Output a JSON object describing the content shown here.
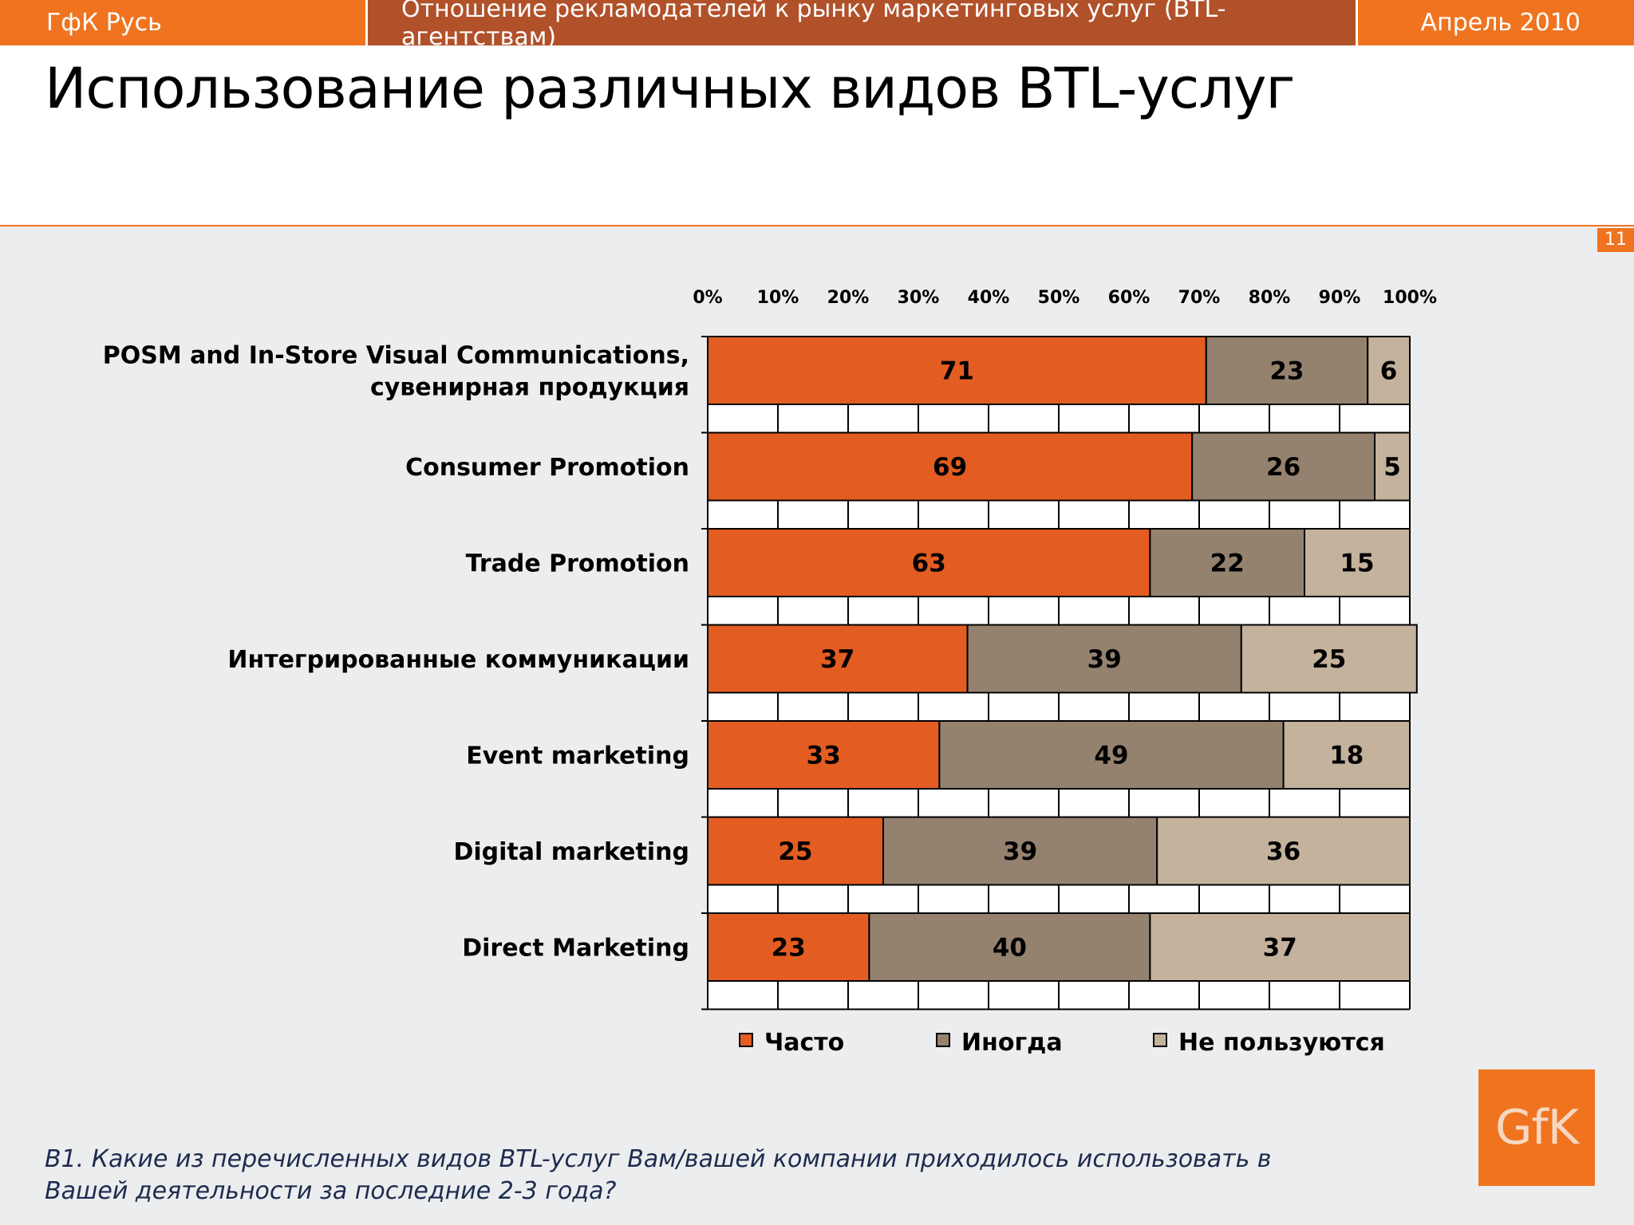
{
  "header": {
    "company": "ГфК Русь",
    "report_title": "Отношение рекламодателей к рынку маркетинговых услуг (BTL-агентствам)",
    "date": "Апрель 2010"
  },
  "slide": {
    "title": "Использование различных видов BTL-услуг",
    "page_number": "11",
    "question": "B1. Какие из перечисленных видов BTL-услуг Вам/вашей компании приходилось использовать в Вашей деятельности за последние 2-3 года?"
  },
  "logo": {
    "text": "GfK"
  },
  "chart_data": {
    "type": "bar",
    "orientation": "horizontal",
    "stacked": true,
    "categories": [
      [
        "POSM and In-Store Visual Communications,",
        "сувенирная продукция"
      ],
      [
        "Consumer Promotion"
      ],
      [
        "Trade Promotion"
      ],
      [
        "Интегрированные коммуникации"
      ],
      [
        "Event marketing"
      ],
      [
        "Digital marketing"
      ],
      [
        "Direct Marketing"
      ]
    ],
    "series": [
      {
        "name": "Часто",
        "color": "#e35d22",
        "values": [
          71,
          69,
          63,
          37,
          33,
          25,
          23
        ]
      },
      {
        "name": "Иногда",
        "color": "#94826f",
        "values": [
          23,
          26,
          22,
          39,
          49,
          39,
          40
        ]
      },
      {
        "name": "Не пользуются",
        "color": "#c4b29c",
        "values": [
          6,
          5,
          15,
          25,
          18,
          36,
          37
        ]
      }
    ],
    "x_ticks": [
      "0%",
      "10%",
      "20%",
      "30%",
      "40%",
      "50%",
      "60%",
      "70%",
      "80%",
      "90%",
      "100%"
    ],
    "xlim": [
      0,
      100
    ],
    "axis_position": "top",
    "grid": true,
    "legend": "bottom"
  }
}
